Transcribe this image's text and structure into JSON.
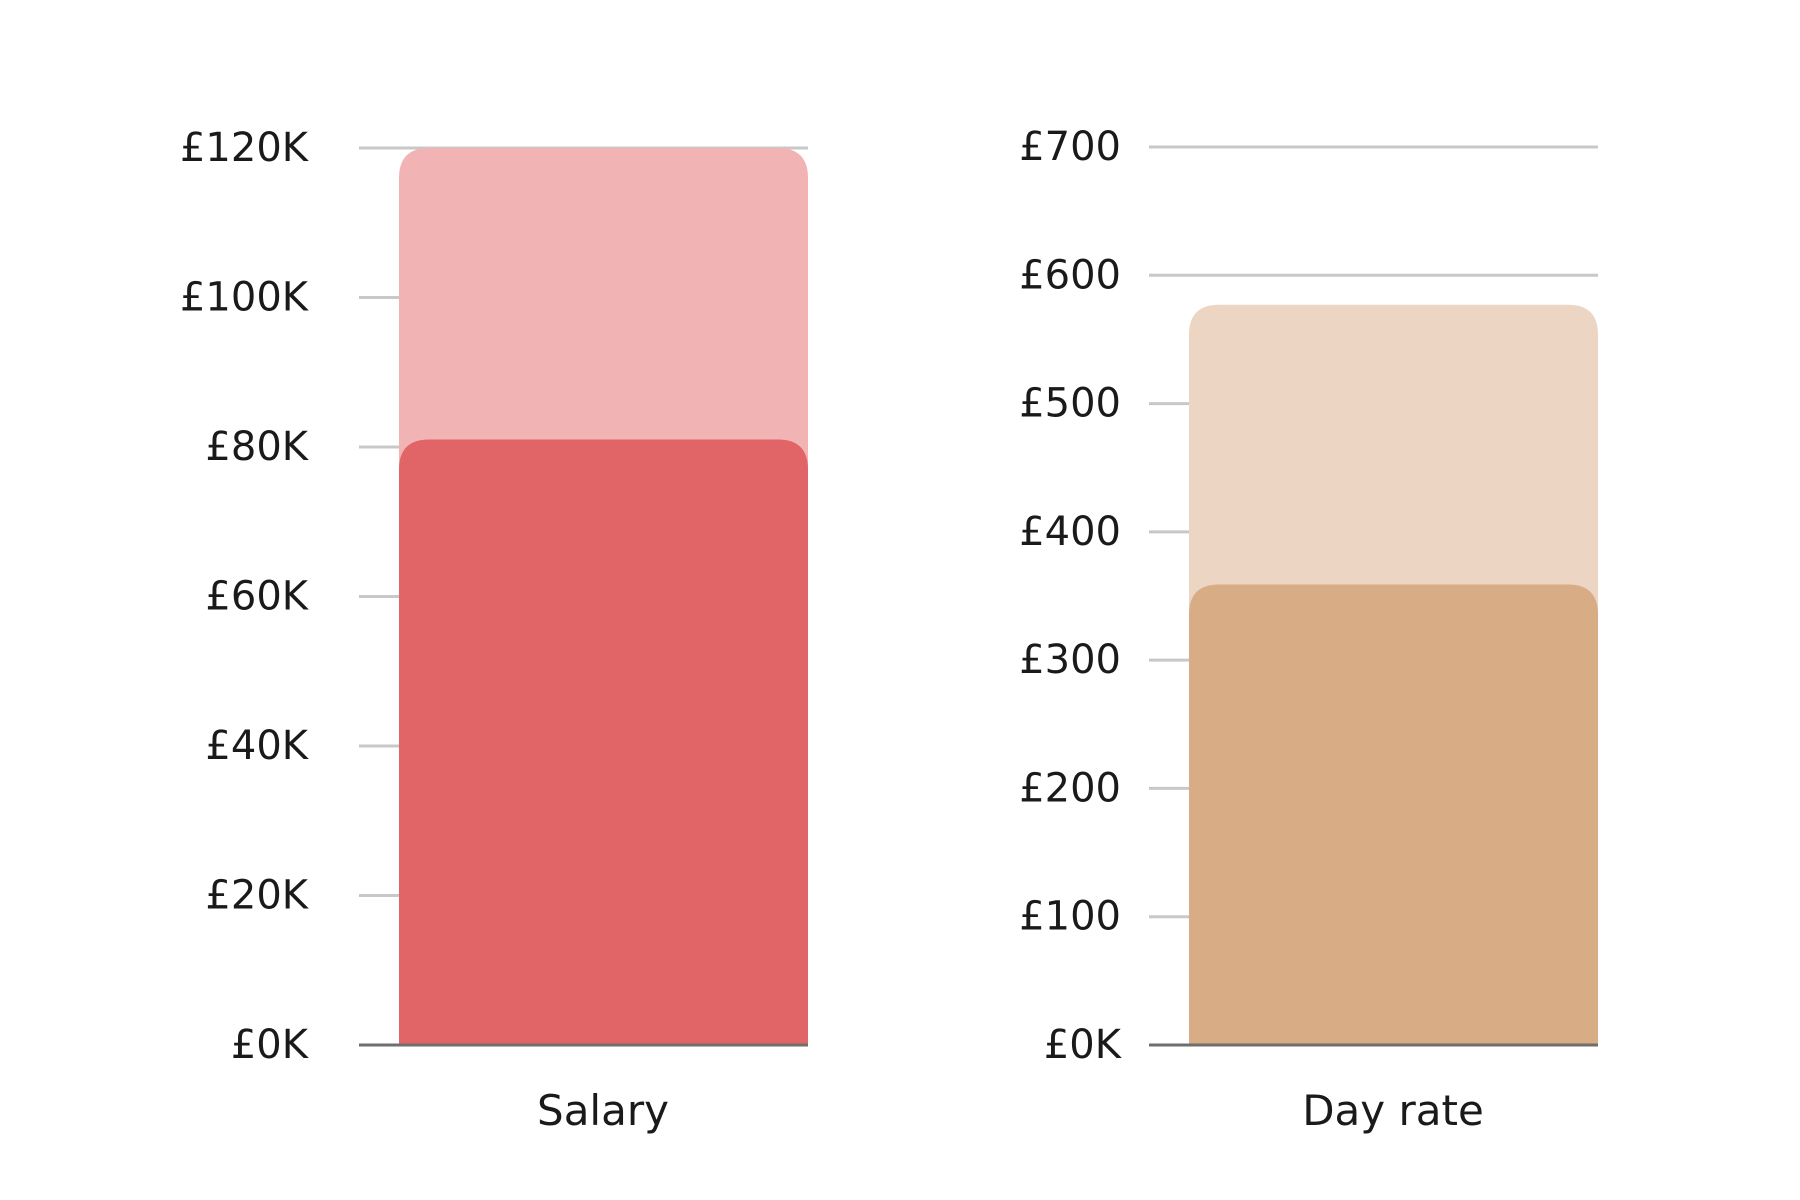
{
  "chart_data": [
    {
      "type": "bar",
      "xlabel": "Salary",
      "ylim": [
        0,
        120000
      ],
      "yticks": [
        {
          "value": 0,
          "label": "£0K"
        },
        {
          "value": 20000,
          "label": "£20K"
        },
        {
          "value": 40000,
          "label": "£40K"
        },
        {
          "value": 60000,
          "label": "£60K"
        },
        {
          "value": 80000,
          "label": "£80K"
        },
        {
          "value": 100000,
          "label": "£100K"
        },
        {
          "value": 120000,
          "label": "£120K"
        }
      ],
      "grid": true,
      "series": [
        {
          "value": 120000,
          "color": "#f2b3b4"
        },
        {
          "value": 81000,
          "color": "#e16567"
        }
      ]
    },
    {
      "type": "bar",
      "xlabel": "Day rate",
      "ylim": [
        0,
        700
      ],
      "yticks": [
        {
          "value": 0,
          "label": "£0K"
        },
        {
          "value": 100,
          "label": "£100"
        },
        {
          "value": 200,
          "label": "£200"
        },
        {
          "value": 300,
          "label": "£300"
        },
        {
          "value": 400,
          "label": "£400"
        },
        {
          "value": 500,
          "label": "£500"
        },
        {
          "value": 600,
          "label": "£600"
        },
        {
          "value": 700,
          "label": "£700"
        }
      ],
      "grid": true,
      "series": [
        {
          "value": 577,
          "color": "#edd5c3"
        },
        {
          "value": 359,
          "color": "#d8ac84"
        }
      ]
    }
  ],
  "colors": {
    "grid": "#c8c8c8",
    "baseline": "#6e6e6e",
    "text": "#1a1a1a"
  }
}
